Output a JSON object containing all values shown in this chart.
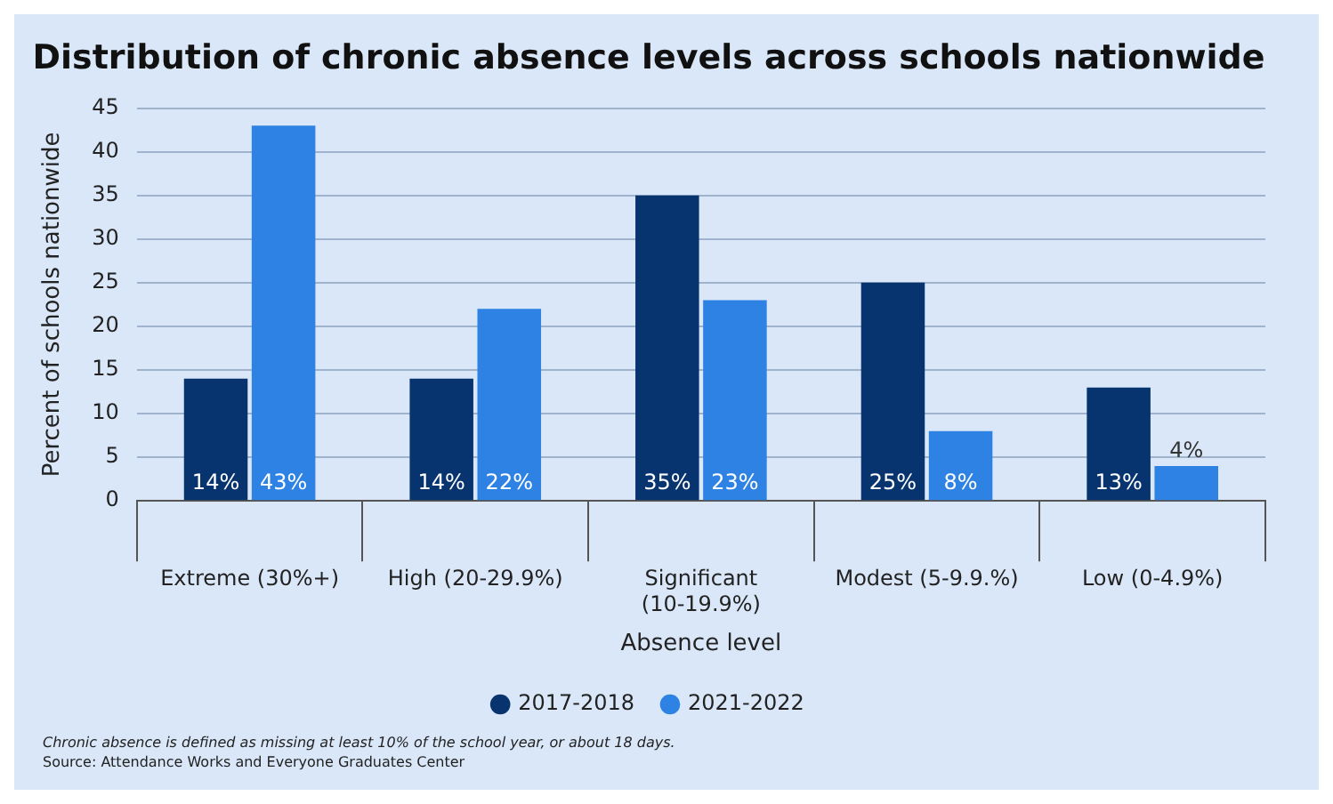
{
  "chart_data": {
    "type": "bar",
    "title": "Distribution of chronic absence levels across schools nationwide",
    "xlabel": "Absence level",
    "ylabel": "Percent of schools nationwide",
    "categories": [
      "Extreme (30%+)",
      "High (20-29.9%)",
      "Significant (10-19.9%)",
      "Modest (5-9.9.%)",
      "Low (0-4.9%)"
    ],
    "series": [
      {
        "name": "2017-2018",
        "color": "#07336e",
        "values": [
          14,
          14,
          35,
          25,
          13
        ],
        "value_labels": [
          "14%",
          "14%",
          "35%",
          "25%",
          "13%"
        ]
      },
      {
        "name": "2021-2022",
        "color": "#2e82e3",
        "values": [
          43,
          22,
          23,
          8,
          4
        ],
        "value_labels": [
          "43%",
          "22%",
          "23%",
          "8%",
          "4%"
        ]
      }
    ],
    "ylim": [
      0,
      45
    ],
    "yticks": [
      0,
      5,
      10,
      15,
      20,
      25,
      30,
      35,
      40,
      45
    ],
    "grid": "y",
    "legend": "bottom",
    "annotations": [
      "Chronic absence is defined as missing at least 10% of the school year, or about 18 days.",
      "Source: Attendance Works and Everyone Graduates Center"
    ]
  }
}
